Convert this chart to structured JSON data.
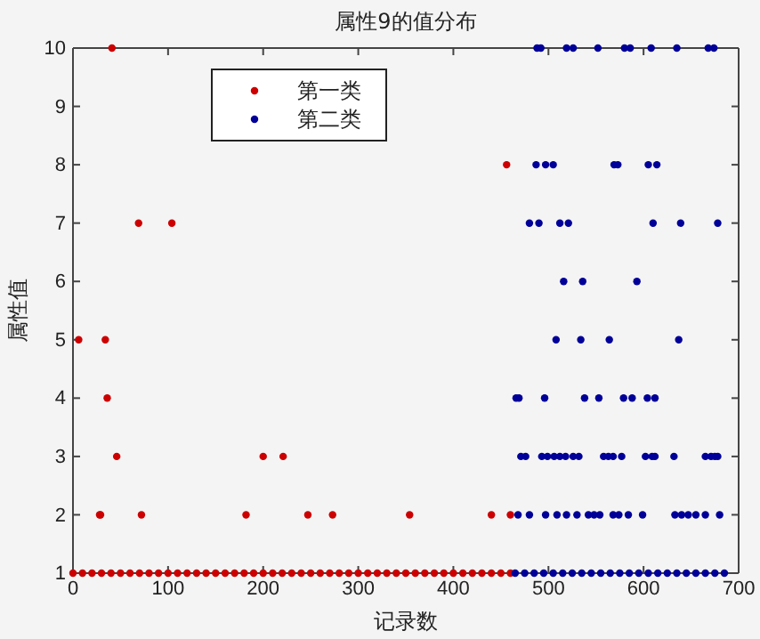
{
  "chart_data": {
    "type": "scatter",
    "title": "属性9的值分布",
    "xlabel": "记录数",
    "ylabel": "属性值",
    "xlim": [
      0,
      700
    ],
    "xticks": [
      0,
      100,
      200,
      300,
      400,
      500,
      600,
      700
    ],
    "ylim": [
      1,
      10
    ],
    "yticks": [
      1,
      2,
      3,
      4,
      5,
      6,
      7,
      8,
      9,
      10
    ],
    "legend": "top left",
    "marker": "circle",
    "grid": false,
    "series": [
      {
        "name": "第一类",
        "color": "#cc0000",
        "x": [
          0,
          10,
          20,
          30,
          40,
          50,
          60,
          70,
          80,
          90,
          100,
          110,
          120,
          130,
          140,
          150,
          160,
          170,
          180,
          190,
          200,
          210,
          220,
          230,
          240,
          250,
          260,
          270,
          280,
          290,
          300,
          310,
          320,
          330,
          340,
          350,
          360,
          370,
          380,
          390,
          400,
          410,
          420,
          430,
          440,
          450,
          460,
          41,
          456,
          69,
          104,
          6,
          34,
          36,
          46,
          200,
          221,
          28,
          29,
          72,
          182,
          247,
          273,
          354,
          440,
          460
        ],
        "values": [
          1,
          1,
          1,
          1,
          1,
          1,
          1,
          1,
          1,
          1,
          1,
          1,
          1,
          1,
          1,
          1,
          1,
          1,
          1,
          1,
          1,
          1,
          1,
          1,
          1,
          1,
          1,
          1,
          1,
          1,
          1,
          1,
          1,
          1,
          1,
          1,
          1,
          1,
          1,
          1,
          1,
          1,
          1,
          1,
          1,
          1,
          1,
          10,
          8,
          7,
          7,
          5,
          5,
          4,
          3,
          3,
          3,
          2,
          2,
          2,
          2,
          2,
          2,
          2,
          2,
          2
        ]
      },
      {
        "name": "第二类",
        "color": "#000099",
        "x": [
          465,
          475,
          485,
          495,
          505,
          515,
          525,
          535,
          545,
          555,
          565,
          575,
          585,
          595,
          605,
          615,
          625,
          635,
          645,
          655,
          665,
          675,
          685,
          488,
          492,
          519,
          526,
          552,
          580,
          586,
          608,
          635,
          668,
          674,
          487,
          497,
          505,
          569,
          573,
          605,
          614,
          480,
          490,
          512,
          521,
          610,
          639,
          678,
          516,
          536,
          593,
          508,
          534,
          564,
          637,
          466,
          469,
          496,
          538,
          553,
          579,
          588,
          604,
          612,
          471,
          476,
          493,
          499,
          506,
          512,
          518,
          526,
          532,
          558,
          563,
          568,
          577,
          602,
          609,
          612,
          632,
          665,
          671,
          675,
          678,
          468,
          480,
          497,
          509,
          519,
          530,
          542,
          548,
          554,
          568,
          574,
          584,
          599,
          633,
          640,
          647,
          655,
          665,
          680
        ],
        "values": [
          1,
          1,
          1,
          1,
          1,
          1,
          1,
          1,
          1,
          1,
          1,
          1,
          1,
          1,
          1,
          1,
          1,
          1,
          1,
          1,
          1,
          1,
          1,
          10,
          10,
          10,
          10,
          10,
          10,
          10,
          10,
          10,
          10,
          10,
          8,
          8,
          8,
          8,
          8,
          8,
          8,
          7,
          7,
          7,
          7,
          7,
          7,
          7,
          6,
          6,
          6,
          5,
          5,
          5,
          5,
          4,
          4,
          4,
          4,
          4,
          4,
          4,
          4,
          4,
          3,
          3,
          3,
          3,
          3,
          3,
          3,
          3,
          3,
          3,
          3,
          3,
          3,
          3,
          3,
          3,
          3,
          3,
          3,
          3,
          3,
          2,
          2,
          2,
          2,
          2,
          2,
          2,
          2,
          2,
          2,
          2,
          2,
          2,
          2,
          2,
          2,
          2,
          2,
          2
        ]
      }
    ]
  }
}
